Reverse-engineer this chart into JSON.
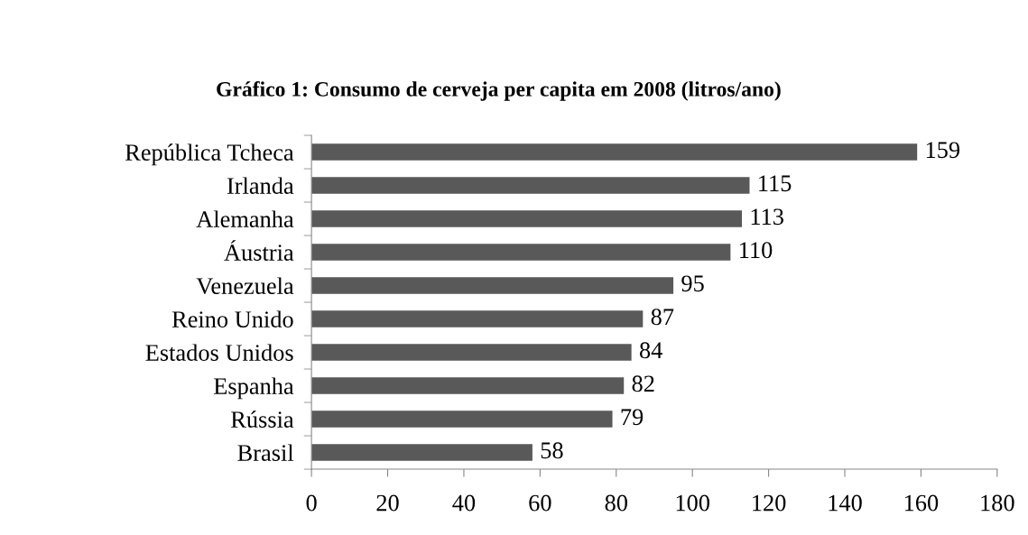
{
  "chart_data": {
    "type": "bar",
    "orientation": "horizontal",
    "title": "Gráfico 1: Consumo de cerveja per capita em 2008 (litros/ano)",
    "categories": [
      "República Tcheca",
      "Irlanda",
      "Alemanha",
      "Áustria",
      "Venezuela",
      "Reino Unido",
      "Estados Unidos",
      "Espanha",
      "Rússia",
      "Brasil"
    ],
    "values": [
      159,
      115,
      113,
      110,
      95,
      87,
      84,
      82,
      79,
      58
    ],
    "color": "#595959",
    "xlim": [
      0,
      180
    ],
    "xticks": [
      0,
      20,
      40,
      60,
      80,
      100,
      120,
      140,
      160,
      180
    ],
    "grid": false,
    "data_labels": true
  }
}
